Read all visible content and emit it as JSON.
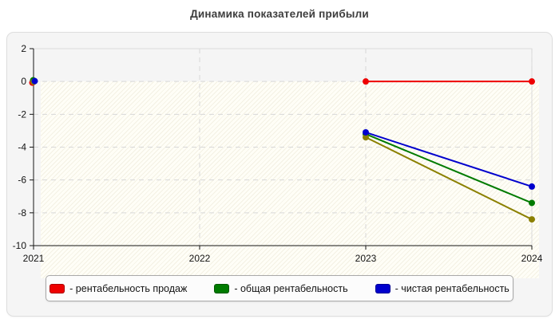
{
  "title": "Динамика показателей прибыли",
  "chart_data": {
    "type": "line",
    "title": "Динамика показателей прибыли",
    "xlabel": "",
    "ylabel": "",
    "x": [
      "2021",
      "2022",
      "2023",
      "2024"
    ],
    "y_ticks": [
      2,
      0,
      -2,
      -4,
      -6,
      -8,
      -10
    ],
    "ylim": [
      -10,
      2
    ],
    "grid": {
      "horizontal": "dashed",
      "vertical": "dashed"
    },
    "legend_position": "bottom",
    "series": [
      {
        "name": "рентабельность продаж",
        "color": "#ee0000",
        "in_legend": true,
        "values": [
          0,
          null,
          0,
          0
        ]
      },
      {
        "name": "общая рентабельность",
        "color": "#007b00",
        "in_legend": true,
        "values": [
          0,
          null,
          -3.2,
          -7.4
        ]
      },
      {
        "name": "",
        "color": "#8b8000",
        "in_legend": false,
        "values": [
          0,
          null,
          -3.4,
          -8.4
        ]
      },
      {
        "name": "чистая рентабельность",
        "color": "#0000cd",
        "in_legend": true,
        "values": [
          0,
          null,
          -3.1,
          -6.4
        ]
      }
    ]
  },
  "legend": {
    "items": [
      {
        "label": "- рентабельность продаж",
        "color": "#ee0000"
      },
      {
        "label": "- общая рентабельность",
        "color": "#007b00"
      },
      {
        "label": "- чистая рентабельность",
        "color": "#0000cd"
      }
    ]
  }
}
